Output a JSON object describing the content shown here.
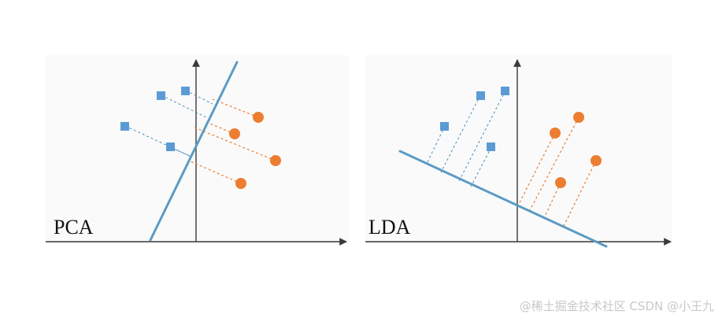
{
  "panels": {
    "pca": {
      "label": "PCA"
    },
    "lda": {
      "label": "LDA"
    }
  },
  "watermark": "@稀土掘金技术社区 CSDN @小王九",
  "colors": {
    "class_a": "#5b9bd5",
    "class_b": "#ed7d31",
    "projection_line": "#5b9bc4",
    "axis": "#3a3a3a"
  },
  "icons": {
    "class_a_marker": "square",
    "class_b_marker": "circle"
  }
}
